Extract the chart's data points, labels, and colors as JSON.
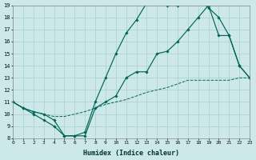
{
  "bg_color": "#cce8e8",
  "line_color": "#006655",
  "grid_color": "#aacece",
  "xmin": 0,
  "xmax": 23,
  "ymin": 8,
  "ymax": 19,
  "xlabel": "Humidex (Indice chaleur)",
  "curve_dashed_x": [
    0,
    1,
    2,
    3,
    4,
    5,
    6,
    7,
    8,
    9,
    10,
    11,
    12,
    13,
    14,
    15,
    16,
    17,
    18,
    19,
    20,
    21,
    22,
    23
  ],
  "curve_dashed_y": [
    11,
    10.5,
    10.2,
    10.0,
    9.8,
    9.8,
    10.0,
    10.2,
    10.5,
    10.8,
    11.0,
    11.2,
    11.5,
    11.8,
    12.0,
    12.2,
    12.5,
    12.8,
    12.8,
    12.8,
    12.8,
    12.8,
    13.0,
    13.0
  ],
  "curve_top_x": [
    0,
    1,
    2,
    3,
    4,
    5,
    6,
    7,
    8,
    9,
    10,
    11,
    12,
    13,
    14,
    15,
    16,
    17,
    18,
    19,
    20,
    21,
    22,
    23
  ],
  "curve_top_y": [
    11,
    10.5,
    10.2,
    10.0,
    9.5,
    8.2,
    8.2,
    8.5,
    11.0,
    13.0,
    15.0,
    16.7,
    17.8,
    19.2,
    19.3,
    19.0,
    19.0,
    19.5,
    19.5,
    18.8,
    18.0,
    16.5,
    14.0,
    13.0
  ],
  "curve_mid_x": [
    0,
    1,
    2,
    3,
    4,
    5,
    6,
    7,
    8,
    9,
    10,
    11,
    12,
    13,
    14,
    15,
    16,
    17,
    18,
    19,
    20,
    21,
    22,
    23
  ],
  "curve_mid_y": [
    11,
    10.5,
    10.0,
    9.5,
    9.0,
    8.2,
    8.2,
    8.2,
    10.5,
    11.0,
    11.5,
    13.0,
    13.5,
    13.5,
    15.0,
    15.2,
    16.0,
    17.0,
    18.0,
    19.0,
    16.5,
    16.5,
    14.0,
    13.0
  ]
}
